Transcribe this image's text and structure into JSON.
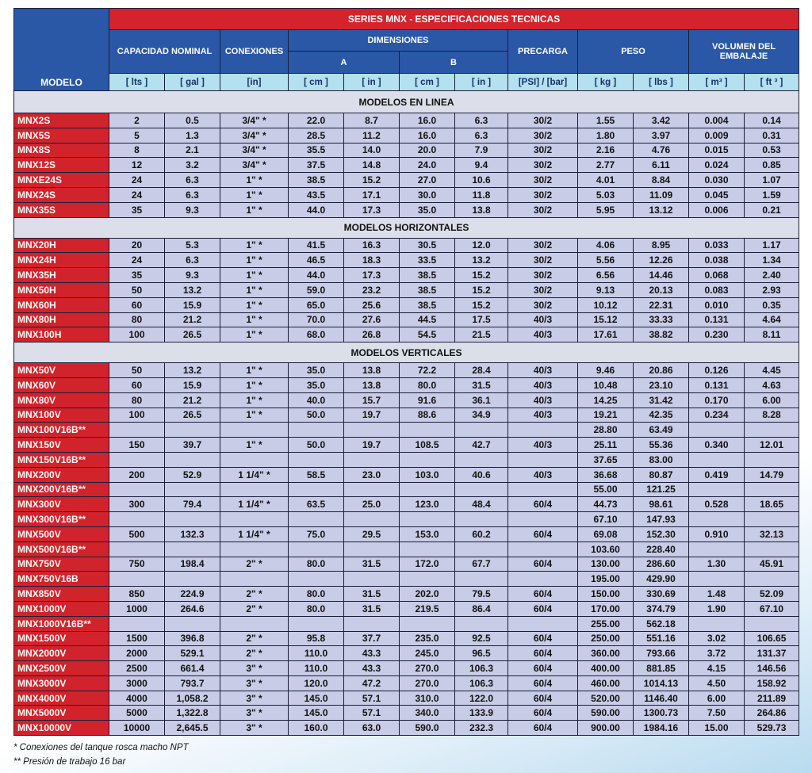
{
  "table": {
    "title": "SERIES MNX - ESPECIFICACIONES TECNICAS",
    "headers": {
      "model": "MODELO",
      "capacity": "CAPACIDAD NOMINAL",
      "connections": "CONEXIONES",
      "dimensions": "DIMENSIONES",
      "a": "A",
      "b": "B",
      "precharge": "PRECARGA",
      "weight": "PESO",
      "volume": "VOLUMEN DEL EMBALAJE"
    },
    "units": [
      "[ lts ]",
      "[ gal ]",
      "[in]",
      "[ cm ]",
      "[ in ]",
      "[ cm ]",
      "[ in ]",
      "[PSI] / [bar]",
      "[ kg ]",
      "[ lbs ]",
      "[ m³ ]",
      "[ ft ³ ]"
    ],
    "sections": [
      {
        "title": "MODELOS EN LINEA",
        "rows": [
          [
            "MNX2S",
            "2",
            "0.5",
            "3/4\" *",
            "22.0",
            "8.7",
            "16.0",
            "6.3",
            "30/2",
            "1.55",
            "3.42",
            "0.004",
            "0.14"
          ],
          [
            "MNX5S",
            "5",
            "1.3",
            "3/4\" *",
            "28.5",
            "11.2",
            "16.0",
            "6.3",
            "30/2",
            "1.80",
            "3.97",
            "0.009",
            "0.31"
          ],
          [
            "MNX8S",
            "8",
            "2.1",
            "3/4\" *",
            "35.5",
            "14.0",
            "20.0",
            "7.9",
            "30/2",
            "2.16",
            "4.76",
            "0.015",
            "0.53"
          ],
          [
            "MNX12S",
            "12",
            "3.2",
            "3/4\" *",
            "37.5",
            "14.8",
            "24.0",
            "9.4",
            "30/2",
            "2.77",
            "6.11",
            "0.024",
            "0.85"
          ],
          [
            "MNXE24S",
            "24",
            "6.3",
            "1\" *",
            "38.5",
            "15.2",
            "27.0",
            "10.6",
            "30/2",
            "4.01",
            "8.84",
            "0.030",
            "1.07"
          ],
          [
            "MNX24S",
            "24",
            "6.3",
            "1\" *",
            "43.5",
            "17.1",
            "30.0",
            "11.8",
            "30/2",
            "5.03",
            "11.09",
            "0.045",
            "1.59"
          ],
          [
            "MNX35S",
            "35",
            "9.3",
            "1\" *",
            "44.0",
            "17.3",
            "35.0",
            "13.8",
            "30/2",
            "5.95",
            "13.12",
            "0.006",
            "0.21"
          ]
        ]
      },
      {
        "title": "MODELOS HORIZONTALES",
        "rows": [
          [
            "MNX20H",
            "20",
            "5.3",
            "1\" *",
            "41.5",
            "16.3",
            "30.5",
            "12.0",
            "30/2",
            "4.06",
            "8.95",
            "0.033",
            "1.17"
          ],
          [
            "MNX24H",
            "24",
            "6.3",
            "1\" *",
            "46.5",
            "18.3",
            "33.5",
            "13.2",
            "30/2",
            "5.56",
            "12.26",
            "0.038",
            "1.34"
          ],
          [
            "MNX35H",
            "35",
            "9.3",
            "1\" *",
            "44.0",
            "17.3",
            "38.5",
            "15.2",
            "30/2",
            "6.56",
            "14.46",
            "0.068",
            "2.40"
          ],
          [
            "MNX50H",
            "50",
            "13.2",
            "1\" *",
            "59.0",
            "23.2",
            "38.5",
            "15.2",
            "30/2",
            "9.13",
            "20.13",
            "0.083",
            "2.93"
          ],
          [
            "MNX60H",
            "60",
            "15.9",
            "1\" *",
            "65.0",
            "25.6",
            "38.5",
            "15.2",
            "30/2",
            "10.12",
            "22.31",
            "0.010",
            "0.35"
          ],
          [
            "MNX80H",
            "80",
            "21.2",
            "1\" *",
            "70.0",
            "27.6",
            "44.5",
            "17.5",
            "40/3",
            "15.12",
            "33.33",
            "0.131",
            "4.64"
          ],
          [
            "MNX100H",
            "100",
            "26.5",
            "1\" *",
            "68.0",
            "26.8",
            "54.5",
            "21.5",
            "40/3",
            "17.61",
            "38.82",
            "0.230",
            "8.11"
          ]
        ]
      },
      {
        "title": "MODELOS VERTICALES",
        "rows": [
          [
            "MNX50V",
            "50",
            "13.2",
            "1\" *",
            "35.0",
            "13.8",
            "72.2",
            "28.4",
            "40/3",
            "9.46",
            "20.86",
            "0.126",
            "4.45"
          ],
          [
            "MNX60V",
            "60",
            "15.9",
            "1\" *",
            "35.0",
            "13.8",
            "80.0",
            "31.5",
            "40/3",
            "10.48",
            "23.10",
            "0.131",
            "4.63"
          ],
          [
            "MNX80V",
            "80",
            "21.2",
            "1\" *",
            "40.0",
            "15.7",
            "91.6",
            "36.1",
            "40/3",
            "14.25",
            "31.42",
            "0.170",
            "6.00"
          ],
          [
            "MNX100V",
            "100",
            "26.5",
            "1\" *",
            "50.0",
            "19.7",
            "88.6",
            "34.9",
            "40/3",
            "19.21",
            "42.35",
            "0.234",
            "8.28"
          ],
          [
            "MNX100V16B**",
            null,
            null,
            null,
            null,
            null,
            null,
            null,
            null,
            "28.80",
            "63.49",
            null,
            null
          ],
          [
            "MNX150V",
            "150",
            "39.7",
            "1\" *",
            "50.0",
            "19.7",
            "108.5",
            "42.7",
            "40/3",
            "25.11",
            "55.36",
            "0.340",
            "12.01"
          ],
          [
            "MNX150V16B**",
            null,
            null,
            null,
            null,
            null,
            null,
            null,
            null,
            "37.65",
            "83.00",
            null,
            null
          ],
          [
            "MNX200V",
            "200",
            "52.9",
            "1 1/4\" *",
            "58.5",
            "23.0",
            "103.0",
            "40.6",
            "40/3",
            "36.68",
            "80.87",
            "0.419",
            "14.79"
          ],
          [
            "MNX200V16B**",
            null,
            null,
            null,
            null,
            null,
            null,
            null,
            null,
            "55.00",
            "121.25",
            null,
            null
          ],
          [
            "MNX300V",
            "300",
            "79.4",
            "1 1/4\" *",
            "63.5",
            "25.0",
            "123.0",
            "48.4",
            "60/4",
            "44.73",
            "98.61",
            "0.528",
            "18.65"
          ],
          [
            "MNX300V16B**",
            null,
            null,
            null,
            null,
            null,
            null,
            null,
            null,
            "67.10",
            "147.93",
            null,
            null
          ],
          [
            "MNX500V",
            "500",
            "132.3",
            "1 1/4\" *",
            "75.0",
            "29.5",
            "153.0",
            "60.2",
            "60/4",
            "69.08",
            "152.30",
            "0.910",
            "32.13"
          ],
          [
            "MNX500V16B**",
            null,
            null,
            null,
            null,
            null,
            null,
            null,
            null,
            "103.60",
            "228.40",
            null,
            null
          ],
          [
            "MNX750V",
            "750",
            "198.4",
            "2\" *",
            "80.0",
            "31.5",
            "172.0",
            "67.7",
            "60/4",
            "130.00",
            "286.60",
            "1.30",
            "45.91"
          ],
          [
            "MNX750V16B",
            null,
            null,
            null,
            null,
            null,
            null,
            null,
            null,
            "195.00",
            "429.90",
            null,
            null
          ],
          [
            "MNX850V",
            "850",
            "224.9",
            "2\" *",
            "80.0",
            "31.5",
            "202.0",
            "79.5",
            "60/4",
            "150.00",
            "330.69",
            "1.48",
            "52.09"
          ],
          [
            "MNX1000V",
            "1000",
            "264.6",
            "2\" *",
            "80.0",
            "31.5",
            "219.5",
            "86.4",
            "60/4",
            "170.00",
            "374.79",
            "1.90",
            "67.10"
          ],
          [
            "MNX1000V16B**",
            null,
            null,
            null,
            null,
            null,
            null,
            null,
            null,
            "255.00",
            "562.18",
            null,
            null
          ],
          [
            "MNX1500V",
            "1500",
            "396.8",
            "2\" *",
            "95.8",
            "37.7",
            "235.0",
            "92.5",
            "60/4",
            "250.00",
            "551.16",
            "3.02",
            "106.65"
          ],
          [
            "MNX2000V",
            "2000",
            "529.1",
            "2\" *",
            "110.0",
            "43.3",
            "245.0",
            "96.5",
            "60/4",
            "360.00",
            "793.66",
            "3.72",
            "131.37"
          ],
          [
            "MNX2500V",
            "2500",
            "661.4",
            "3\" *",
            "110.0",
            "43.3",
            "270.0",
            "106.3",
            "60/4",
            "400.00",
            "881.85",
            "4.15",
            "146.56"
          ],
          [
            "MNX3000V",
            "3000",
            "793.7",
            "3\" *",
            "120.0",
            "47.2",
            "270.0",
            "106.3",
            "60/4",
            "460.00",
            "1014.13",
            "4.50",
            "158.92"
          ],
          [
            "MNX4000V",
            "4000",
            "1,058.2",
            "3\" *",
            "145.0",
            "57.1",
            "310.0",
            "122.0",
            "60/4",
            "520.00",
            "1146.40",
            "6.00",
            "211.89"
          ],
          [
            "MNX5000V",
            "5000",
            "1,322.8",
            "3\" *",
            "145.0",
            "57.1",
            "340.0",
            "133.9",
            "60/4",
            "590.00",
            "1300.73",
            "7.50",
            "264.86"
          ],
          [
            "MNX10000V",
            "10000",
            "2,645.5",
            "3\" *",
            "160.0",
            "63.0",
            "590.0",
            "232.3",
            "60/4",
            "900.00",
            "1984.16",
            "15.00",
            "529.73"
          ]
        ]
      }
    ]
  },
  "footnotes": [
    "* Conexiones del tanque rosca macho NPT",
    "** Presión de trabajo 16 bar"
  ]
}
